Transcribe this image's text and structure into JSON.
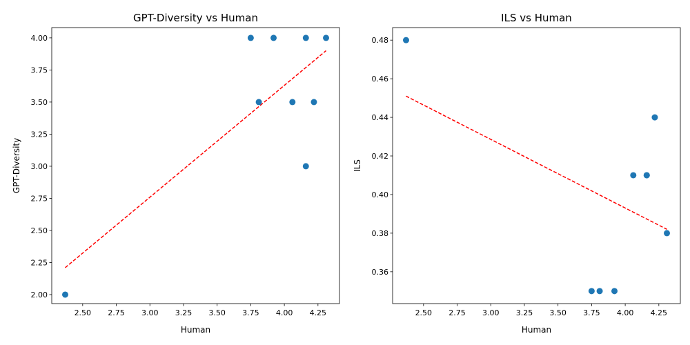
{
  "chart_data": [
    {
      "type": "scatter",
      "title": "GPT-Diversity vs Human",
      "xlabel": "Human",
      "ylabel": "GPT-Diversity",
      "xlim": [
        2.27,
        4.41
      ],
      "ylim": [
        1.93,
        4.08
      ],
      "xticks": [
        "2.50",
        "2.75",
        "3.00",
        "3.25",
        "3.50",
        "3.75",
        "4.00",
        "4.25"
      ],
      "yticks": [
        "2.00",
        "2.25",
        "2.50",
        "2.75",
        "3.00",
        "3.25",
        "3.50",
        "3.75",
        "4.00"
      ],
      "series": [
        {
          "points": [
            {
              "x": 2.37,
              "y": 2.0
            },
            {
              "x": 3.75,
              "y": 4.0
            },
            {
              "x": 3.81,
              "y": 3.5
            },
            {
              "x": 3.92,
              "y": 4.0
            },
            {
              "x": 4.06,
              "y": 3.5
            },
            {
              "x": 4.16,
              "y": 4.0
            },
            {
              "x": 4.16,
              "y": 3.0
            },
            {
              "x": 4.22,
              "y": 3.5
            },
            {
              "x": 4.31,
              "y": 4.0
            }
          ],
          "color": "#1f77b4"
        }
      ],
      "trendline": {
        "x1": 2.37,
        "y1": 2.21,
        "x2": 4.31,
        "y2": 3.9,
        "color": "#ff0000",
        "style": "dashed"
      }
    },
    {
      "type": "scatter",
      "title": "ILS vs Human",
      "xlabel": "Human",
      "ylabel": "ILS",
      "xlim": [
        2.27,
        4.41
      ],
      "ylim": [
        0.3435,
        0.4865
      ],
      "xticks": [
        "2.50",
        "2.75",
        "3.00",
        "3.25",
        "3.50",
        "3.75",
        "4.00",
        "4.25"
      ],
      "yticks": [
        "0.36",
        "0.38",
        "0.40",
        "0.42",
        "0.44",
        "0.46",
        "0.48"
      ],
      "series": [
        {
          "points": [
            {
              "x": 2.37,
              "y": 0.48
            },
            {
              "x": 3.75,
              "y": 0.35
            },
            {
              "x": 3.81,
              "y": 0.35
            },
            {
              "x": 3.92,
              "y": 0.35
            },
            {
              "x": 4.06,
              "y": 0.41
            },
            {
              "x": 4.16,
              "y": 0.41
            },
            {
              "x": 4.16,
              "y": 0.41
            },
            {
              "x": 4.22,
              "y": 0.44
            },
            {
              "x": 4.31,
              "y": 0.38
            }
          ],
          "color": "#1f77b4"
        }
      ],
      "trendline": {
        "x1": 2.37,
        "y1": 0.451,
        "x2": 4.31,
        "y2": 0.382,
        "color": "#ff0000",
        "style": "dashed"
      }
    }
  ]
}
